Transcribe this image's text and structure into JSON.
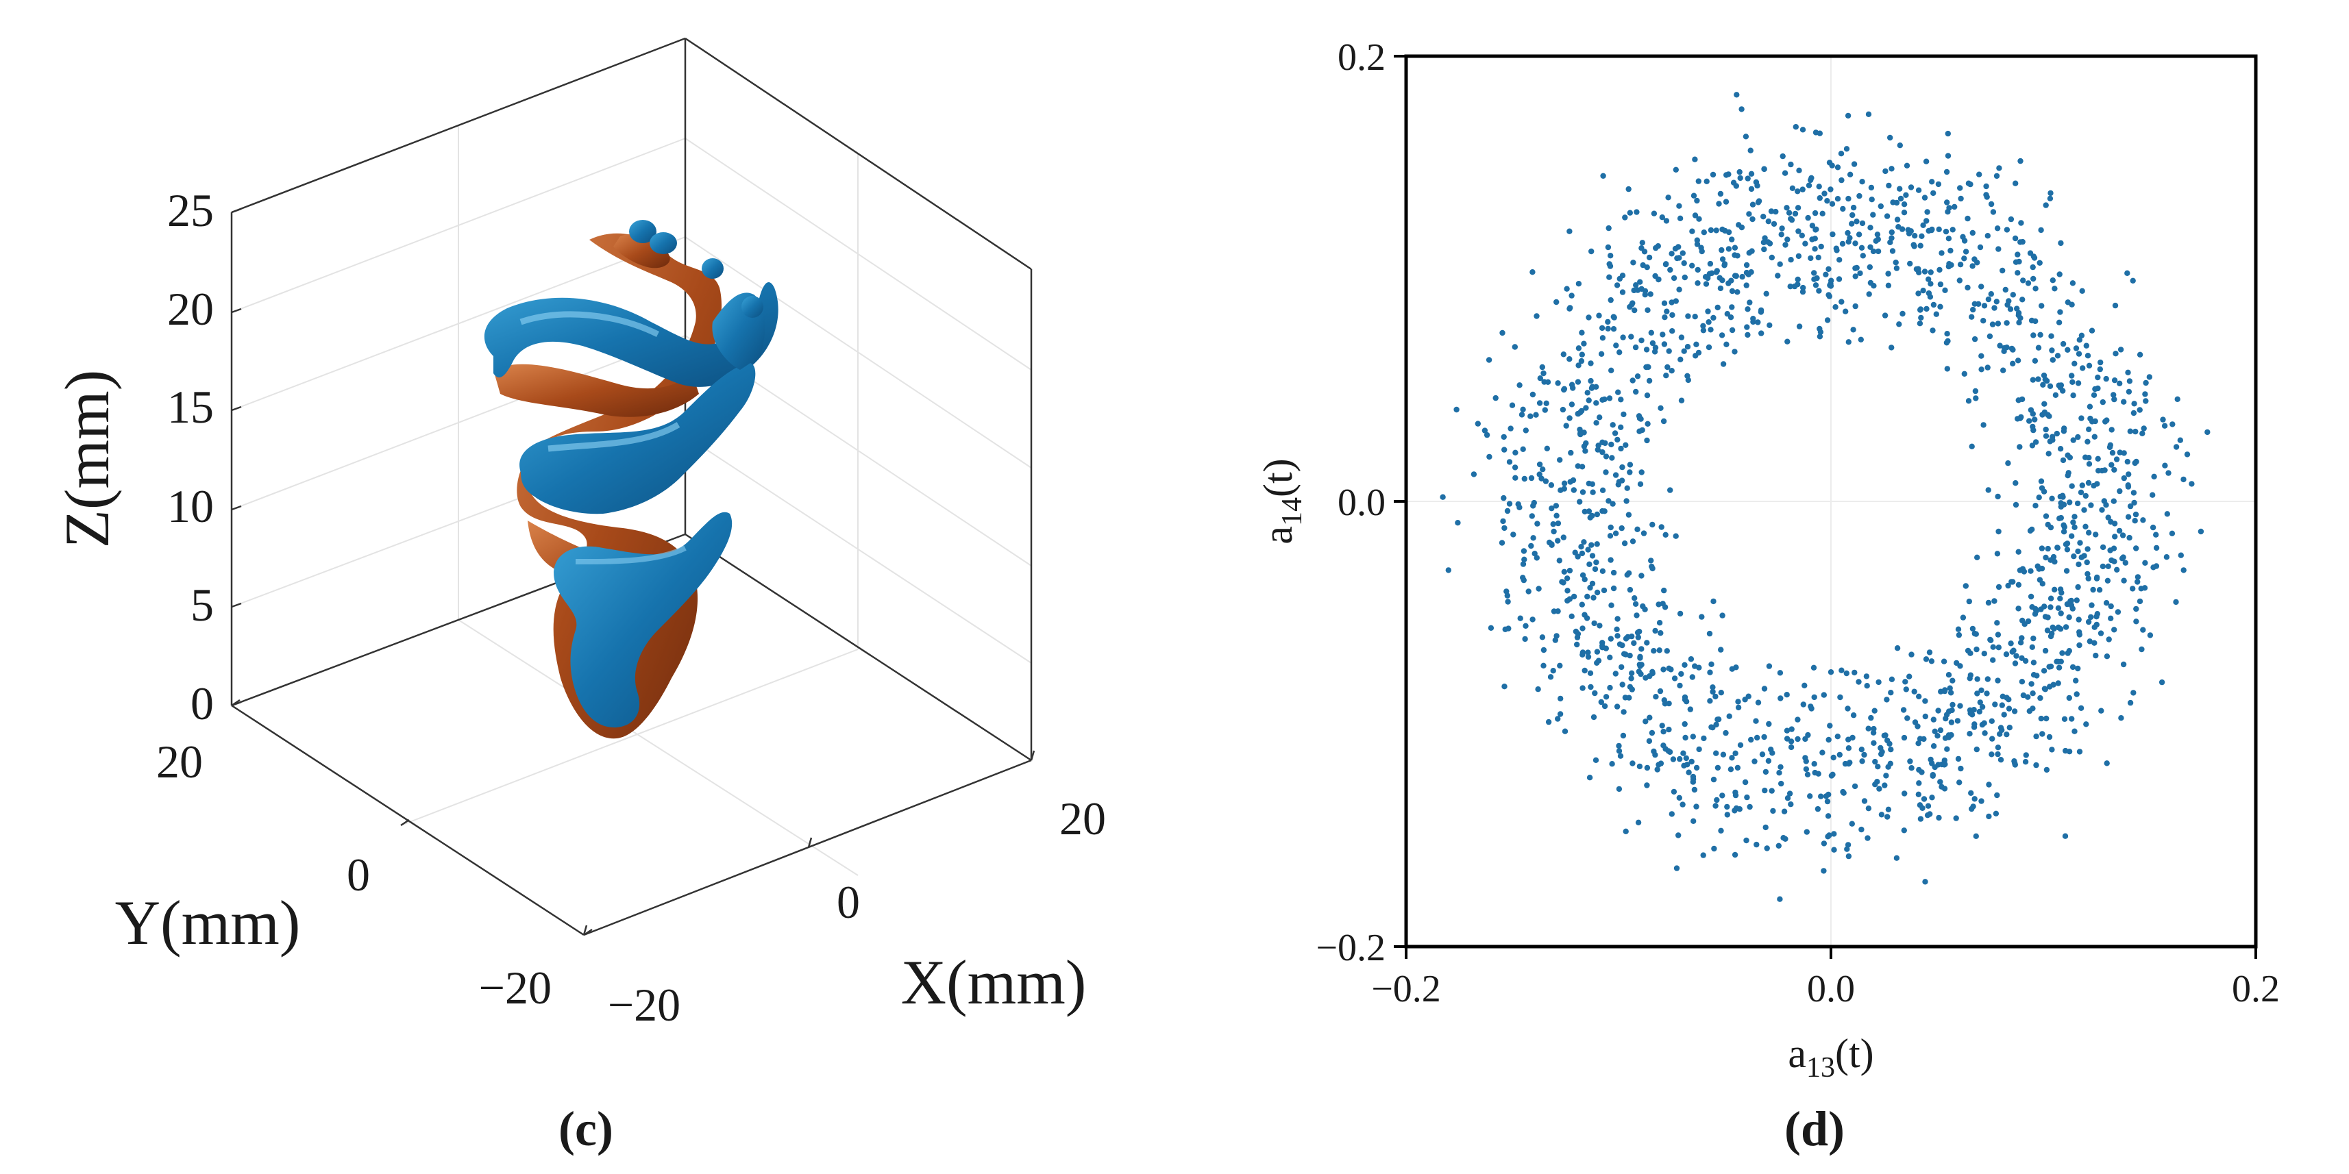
{
  "panels": {
    "left": {
      "caption": "(c)",
      "zlabel": "Z(mm)",
      "ylabel": "Y(mm)",
      "xlabel": "X(mm)",
      "zticks": [
        "0",
        "5",
        "10",
        "15",
        "20",
        "25"
      ],
      "yticks": [
        "20",
        "0",
        "−20"
      ],
      "xticks": [
        "−20",
        "0",
        "20"
      ]
    },
    "right": {
      "caption": "(d)"
    }
  },
  "colors": {
    "isosurface_positive": "#1e78b4",
    "isosurface_negative": "#a84a1a",
    "scatter_points": "#1f6fa6",
    "axes": "#000000",
    "grid": "#e6e6e6"
  },
  "chart_data": [
    {
      "type": "3d-isosurface",
      "zlabel": "Z(mm)",
      "ylabel": "Y(mm)",
      "xlabel": "X(mm)",
      "zticks": [
        0,
        5,
        10,
        15,
        20,
        25
      ],
      "yticks": [
        20,
        0,
        -20
      ],
      "xticks": [
        -20,
        0,
        20
      ],
      "zlim": [
        0,
        25
      ],
      "ylim": [
        -20,
        20
      ],
      "xlim": [
        -20,
        20
      ],
      "grid": true
    },
    {
      "type": "scatter",
      "xlabel": "a13(t)",
      "ylabel": "a14(t)",
      "xlabel_parts": {
        "base": "a",
        "sub": "13",
        "suffix": "(t)"
      },
      "ylabel_parts": {
        "base": "a",
        "sub": "14",
        "suffix": "(t)"
      },
      "xlim": [
        -0.2,
        0.2
      ],
      "ylim": [
        -0.2,
        0.2
      ],
      "xticks": [
        "−0.2",
        "0.0",
        "0.2"
      ],
      "yticks": [
        "−0.2",
        "0.0",
        "0.2"
      ],
      "distribution": {
        "shape": "ring",
        "center": [
          0.0,
          0.0
        ],
        "radius_inner": 0.06,
        "radius_outer": 0.19,
        "point_count": 1800
      }
    }
  ]
}
